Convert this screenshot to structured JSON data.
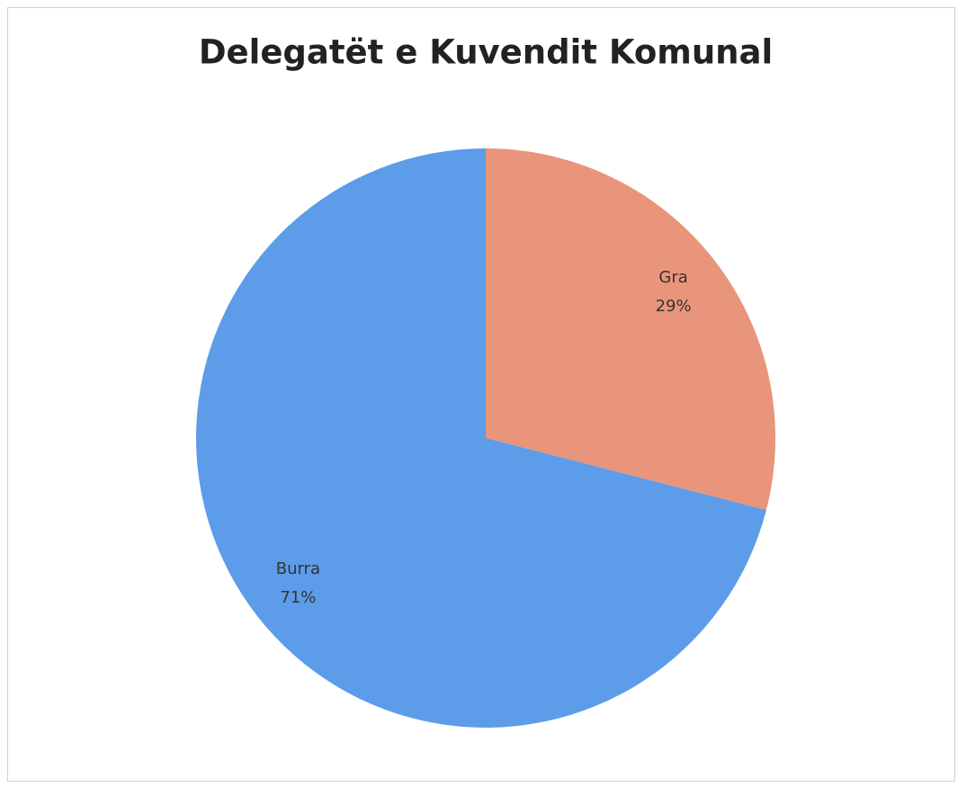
{
  "chart_data": {
    "type": "pie",
    "title": "Delegatët e Kuvendit Komunal",
    "categories": [
      "Gra",
      "Burra"
    ],
    "values": [
      29,
      71
    ],
    "value_labels": [
      "29%",
      "71%"
    ],
    "colors": [
      "#e9957b",
      "#5c9ce9"
    ]
  }
}
